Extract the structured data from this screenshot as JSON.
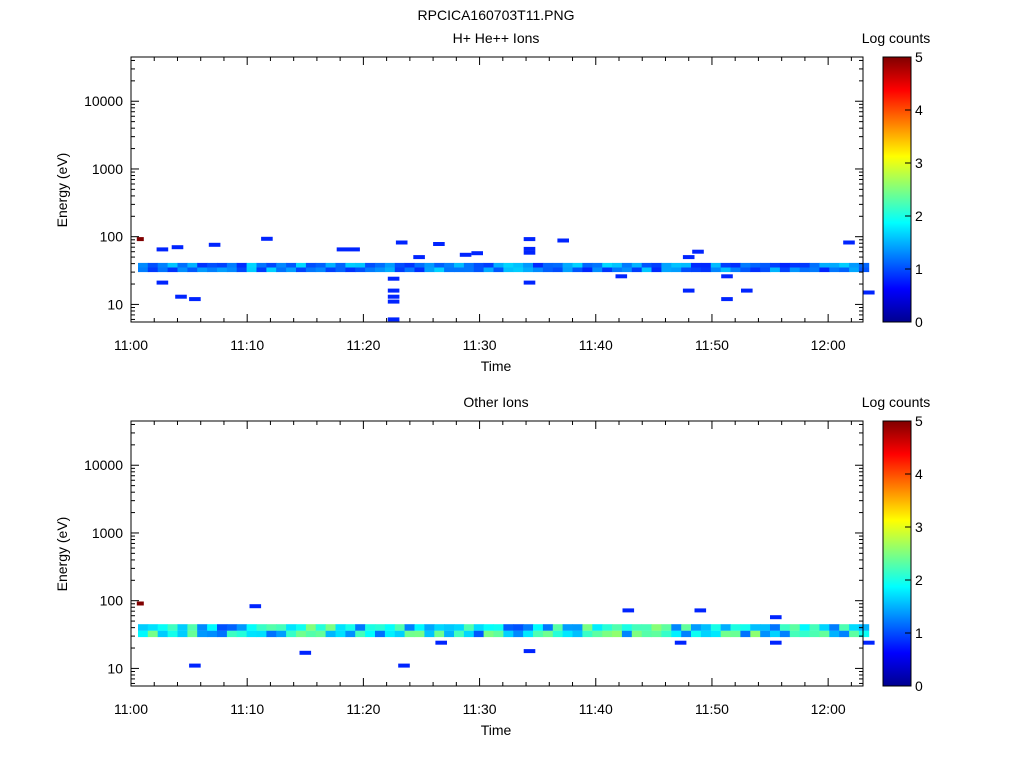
{
  "figure": {
    "title": "RPCICA160703T11.PNG"
  },
  "chart_data": [
    {
      "type": "heatmap",
      "title": "H+ He++ Ions",
      "xlabel": "Time",
      "ylabel": "Energy (eV)",
      "xlim": [
        "11:00",
        "12:03"
      ],
      "ylim": [
        5.5,
        45000
      ],
      "yscale": "log",
      "x_ticks": [
        "11:00",
        "11:10",
        "11:20",
        "11:30",
        "11:40",
        "11:50",
        "12:00"
      ],
      "y_ticks": [
        "10",
        "100",
        "1000",
        "10000"
      ],
      "colorbar": {
        "label": "Log counts",
        "min": 0,
        "max": 5,
        "ticks": [
          "0",
          "1",
          "2",
          "3",
          "4",
          "5"
        ]
      },
      "band": {
        "energy_low": 30,
        "energy_high": 41,
        "value_min": 0.8,
        "value_max": 1.7
      },
      "cells": [
        [
          0.5,
          0.6,
          92,
          5
        ],
        [
          2.2,
          1.0,
          65,
          0.8
        ],
        [
          3.5,
          1.0,
          70,
          0.8
        ],
        [
          6.7,
          1.0,
          76,
          0.8
        ],
        [
          11.2,
          1.0,
          93,
          0.8
        ],
        [
          17.7,
          2.0,
          65,
          0.8
        ],
        [
          22.8,
          1.0,
          82,
          0.8
        ],
        [
          26.0,
          1.0,
          78,
          0.8
        ],
        [
          28.3,
          1.0,
          54,
          0.8
        ],
        [
          29.3,
          1.0,
          57,
          0.8
        ],
        [
          33.8,
          1.0,
          92,
          0.8
        ],
        [
          33.8,
          1.0,
          66,
          0.8
        ],
        [
          33.8,
          1.0,
          58,
          0.8
        ],
        [
          36.7,
          1.0,
          88,
          0.8
        ],
        [
          48.3,
          1.0,
          60,
          0.8
        ],
        [
          61.3,
          1.0,
          82,
          0.8
        ],
        [
          24.3,
          1.0,
          50,
          0.8
        ],
        [
          47.5,
          1.0,
          50,
          0.8
        ],
        [
          2.2,
          1.0,
          21,
          0.8
        ],
        [
          3.8,
          1.0,
          13,
          0.8
        ],
        [
          5.0,
          1.0,
          12,
          0.8
        ],
        [
          22.1,
          1.0,
          24,
          0.8
        ],
        [
          22.1,
          1.0,
          16,
          0.8
        ],
        [
          22.1,
          1.0,
          13,
          0.8
        ],
        [
          22.1,
          1.0,
          11,
          0.8
        ],
        [
          22.1,
          1.0,
          6,
          0.8
        ],
        [
          33.8,
          1.0,
          21,
          0.8
        ],
        [
          47.5,
          1.0,
          16,
          0.8
        ],
        [
          50.8,
          1.0,
          12,
          0.8
        ],
        [
          50.8,
          1.0,
          26,
          0.8
        ],
        [
          52.5,
          1.0,
          16,
          0.8
        ],
        [
          41.7,
          1.0,
          26,
          0.8
        ],
        [
          63.0,
          1.0,
          15,
          0.8
        ]
      ]
    },
    {
      "type": "heatmap",
      "title": "Other Ions",
      "xlabel": "Time",
      "ylabel": "Energy (eV)",
      "xlim": [
        "11:00",
        "12:03"
      ],
      "ylim": [
        5.5,
        45000
      ],
      "yscale": "log",
      "x_ticks": [
        "11:00",
        "11:10",
        "11:20",
        "11:30",
        "11:40",
        "11:50",
        "12:00"
      ],
      "y_ticks": [
        "10",
        "100",
        "1000",
        "10000"
      ],
      "colorbar": {
        "label": "Log counts",
        "min": 0,
        "max": 5,
        "ticks": [
          "0",
          "1",
          "2",
          "3",
          "4",
          "5"
        ]
      },
      "band": {
        "energy_low": 29,
        "energy_high": 45,
        "value_min": 1.0,
        "value_max": 2.6
      },
      "cells": [
        [
          0.5,
          0.6,
          91,
          5
        ],
        [
          10.2,
          1.0,
          83,
          0.8
        ],
        [
          42.3,
          1.0,
          72,
          0.8
        ],
        [
          48.5,
          1.0,
          72,
          0.8
        ],
        [
          55.0,
          1.0,
          57,
          0.8
        ],
        [
          5.0,
          1.0,
          11,
          0.8
        ],
        [
          14.5,
          1.0,
          17,
          0.8
        ],
        [
          23.0,
          1.0,
          11,
          0.8
        ],
        [
          33.8,
          1.0,
          18,
          0.8
        ],
        [
          26.2,
          1.0,
          24,
          0.8
        ],
        [
          46.8,
          1.0,
          24,
          0.8
        ],
        [
          55.0,
          1.0,
          24,
          0.8
        ],
        [
          63.0,
          1.0,
          24,
          0.8
        ]
      ]
    }
  ]
}
